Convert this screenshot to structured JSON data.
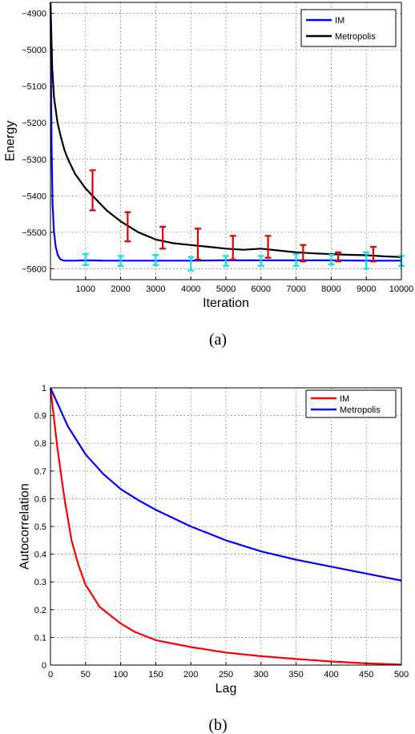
{
  "chart_data": [
    {
      "type": "line",
      "caption": "(a)",
      "xlabel": "Iteration",
      "ylabel": "Energy",
      "xlim": [
        0,
        10000
      ],
      "ylim": [
        -5630,
        -4870
      ],
      "xticks": [
        1000,
        2000,
        3000,
        4000,
        5000,
        6000,
        7000,
        8000,
        9000,
        10000
      ],
      "yticks": [
        -4900,
        -5000,
        -5100,
        -5200,
        -5300,
        -5400,
        -5500,
        -5600
      ],
      "grid": true,
      "legend_position": "top-right",
      "series": [
        {
          "name": "IM",
          "color": "#0000ff",
          "x": [
            0,
            30,
            60,
            100,
            150,
            200,
            250,
            300,
            400,
            500,
            700,
            1000,
            1500,
            2000,
            3000,
            4000,
            5000,
            6000,
            7000,
            8000,
            9000,
            10000
          ],
          "y": [
            -4870,
            -5250,
            -5420,
            -5500,
            -5540,
            -5560,
            -5570,
            -5575,
            -5578,
            -5578,
            -5578,
            -5577,
            -5578,
            -5578,
            -5578,
            -5578,
            -5577,
            -5577,
            -5577,
            -5577,
            -5578,
            -5578
          ],
          "errorbars": [
            {
              "x": 1000,
              "low": -5590,
              "high": -5560
            },
            {
              "x": 2000,
              "low": -5592,
              "high": -5565
            },
            {
              "x": 3000,
              "low": -5590,
              "high": -5562
            },
            {
              "x": 4000,
              "low": -5605,
              "high": -5568
            },
            {
              "x": 5000,
              "low": -5592,
              "high": -5565
            },
            {
              "x": 6000,
              "low": -5592,
              "high": -5565
            },
            {
              "x": 7000,
              "low": -5592,
              "high": -5560
            },
            {
              "x": 8000,
              "low": -5588,
              "high": -5562
            },
            {
              "x": 9000,
              "low": -5600,
              "high": -5555
            },
            {
              "x": 10000,
              "low": -5592,
              "high": -5565
            }
          ]
        },
        {
          "name": "Metropolis",
          "color": "#000000",
          "x": [
            0,
            50,
            100,
            200,
            300,
            400,
            500,
            700,
            1000,
            1300,
            1600,
            2000,
            2500,
            3000,
            3500,
            4000,
            4500,
            5000,
            5500,
            6000,
            6500,
            7000,
            7500,
            8000,
            8500,
            9000,
            9500,
            10000
          ],
          "y": [
            -4870,
            -5050,
            -5130,
            -5200,
            -5240,
            -5275,
            -5300,
            -5340,
            -5380,
            -5410,
            -5440,
            -5470,
            -5500,
            -5520,
            -5530,
            -5535,
            -5540,
            -5545,
            -5548,
            -5545,
            -5550,
            -5555,
            -5558,
            -5560,
            -5562,
            -5563,
            -5566,
            -5568
          ],
          "errorbars": [
            {
              "x": 1200,
              "low": -5440,
              "high": -5330
            },
            {
              "x": 2200,
              "low": -5525,
              "high": -5445
            },
            {
              "x": 3200,
              "low": -5545,
              "high": -5485
            },
            {
              "x": 4200,
              "low": -5575,
              "high": -5490
            },
            {
              "x": 5200,
              "low": -5575,
              "high": -5510
            },
            {
              "x": 6200,
              "low": -5570,
              "high": -5510
            },
            {
              "x": 7200,
              "low": -5580,
              "high": -5535
            },
            {
              "x": 8200,
              "low": -5580,
              "high": -5555
            },
            {
              "x": 9200,
              "low": -5580,
              "high": -5540
            }
          ]
        }
      ]
    },
    {
      "type": "line",
      "caption": "(b)",
      "xlabel": "Lag",
      "ylabel": "Autocorrelation",
      "xlim": [
        0,
        500
      ],
      "ylim": [
        0,
        1
      ],
      "xticks": [
        0,
        50,
        100,
        150,
        200,
        250,
        300,
        350,
        400,
        450,
        500
      ],
      "yticks": [
        0,
        0.1,
        0.2,
        0.3,
        0.4,
        0.5,
        0.6,
        0.7,
        0.8,
        0.9,
        1
      ],
      "grid": true,
      "legend_position": "top-right",
      "series": [
        {
          "name": "IM",
          "color": "#ff0000",
          "x": [
            0,
            10,
            20,
            30,
            40,
            50,
            60,
            70,
            80,
            100,
            120,
            150,
            200,
            250,
            300,
            350,
            400,
            450,
            500
          ],
          "y": [
            1.0,
            0.78,
            0.6,
            0.45,
            0.36,
            0.29,
            0.25,
            0.21,
            0.19,
            0.15,
            0.12,
            0.09,
            0.065,
            0.045,
            0.032,
            0.022,
            0.013,
            0.006,
            0.002
          ]
        },
        {
          "name": "Metropolis",
          "color": "#0000ff",
          "x": [
            0,
            25,
            50,
            75,
            100,
            125,
            150,
            200,
            250,
            300,
            350,
            400,
            450,
            500
          ],
          "y": [
            1.0,
            0.86,
            0.76,
            0.69,
            0.635,
            0.595,
            0.56,
            0.5,
            0.45,
            0.41,
            0.38,
            0.355,
            0.33,
            0.305
          ]
        }
      ]
    }
  ]
}
